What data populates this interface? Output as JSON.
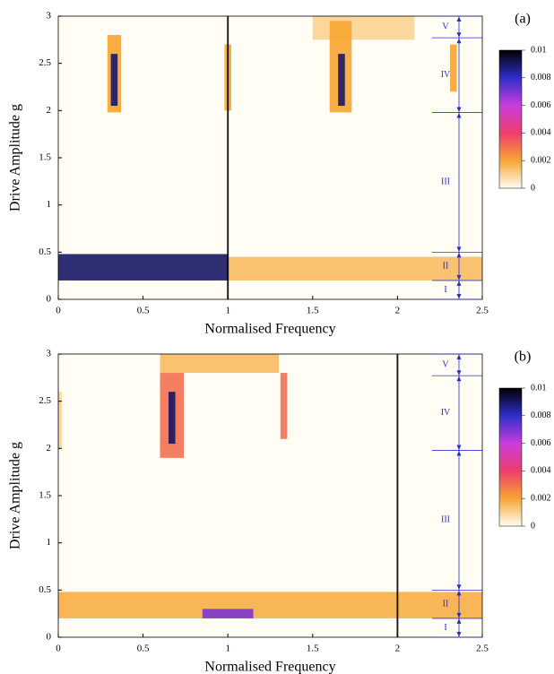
{
  "chart_data": [
    {
      "type": "heatmap",
      "panel_label": "(a)",
      "xlabel": "Normalised Frequency",
      "ylabel": "Drive Amplitude g",
      "xlim": [
        0,
        2.5
      ],
      "xticks": [
        0,
        0.5,
        1,
        1.5,
        2,
        2.5
      ],
      "ylim": [
        0,
        3
      ],
      "yticks": [
        0,
        0.5,
        1,
        1.5,
        2,
        2.5,
        3
      ],
      "clim": [
        0,
        0.01
      ],
      "cticks": [
        0,
        0.002,
        0.004,
        0.006,
        0.008,
        0.01
      ],
      "colormap": [
        "#fffdf4",
        "#f7a531",
        "#ee3d6e",
        "#c93ddc",
        "#2e2ec8",
        "#000000"
      ],
      "regions": [
        {
          "label": "I",
          "range": [
            0,
            0.2
          ]
        },
        {
          "label": "II",
          "range": [
            0.2,
            0.5
          ]
        },
        {
          "label": "III",
          "range": [
            0.5,
            1.98
          ]
        },
        {
          "label": "IV",
          "range": [
            1.98,
            2.77
          ]
        },
        {
          "label": "V",
          "range": [
            2.77,
            3
          ]
        }
      ],
      "features": [
        {
          "x": [
            1,
            2.5
          ],
          "y": [
            0.2,
            0.45
          ],
          "value": 0.0015
        },
        {
          "x": [
            0,
            1
          ],
          "y": [
            0.2,
            0.48
          ],
          "value": 0.009
        },
        {
          "x": [
            1.5,
            2.1
          ],
          "y": [
            2.75,
            3
          ],
          "value": 0.001
        },
        {
          "x": [
            0.29,
            0.37
          ],
          "y": [
            1.98,
            2.8
          ],
          "value": 0.002
        },
        {
          "x": [
            0.31,
            0.35
          ],
          "y": [
            2.05,
            2.6
          ],
          "value": 0.009
        },
        {
          "x": [
            1.6,
            1.73
          ],
          "y": [
            1.98,
            2.95
          ],
          "value": 0.002
        },
        {
          "x": [
            1.65,
            1.69
          ],
          "y": [
            2.05,
            2.6
          ],
          "value": 0.009
        },
        {
          "x": [
            0.98,
            1.02
          ],
          "y": [
            2,
            2.7
          ],
          "value": 0.002
        },
        {
          "x": [
            2.31,
            2.35
          ],
          "y": [
            2.2,
            2.7
          ],
          "value": 0.002
        },
        {
          "x": [
            0.995,
            1.005
          ],
          "y": [
            0,
            3
          ],
          "value": 0.01
        }
      ]
    },
    {
      "type": "heatmap",
      "panel_label": "(b)",
      "xlabel": "Normalised Frequency",
      "ylabel": "Drive Amplitude g",
      "xlim": [
        0,
        2.5
      ],
      "xticks": [
        0,
        0.5,
        1,
        1.5,
        2,
        2.5
      ],
      "ylim": [
        0,
        3
      ],
      "yticks": [
        0,
        0.5,
        1,
        1.5,
        2,
        2.5,
        3
      ],
      "clim": [
        0,
        0.01
      ],
      "cticks": [
        0,
        0.002,
        0.004,
        0.006,
        0.008,
        0.01
      ],
      "colormap": [
        "#fffdf4",
        "#f7a531",
        "#ee3d6e",
        "#c93ddc",
        "#2e2ec8",
        "#000000"
      ],
      "regions": [
        {
          "label": "I",
          "range": [
            0,
            0.2
          ]
        },
        {
          "label": "II",
          "range": [
            0.2,
            0.5
          ]
        },
        {
          "label": "III",
          "range": [
            0.5,
            1.98
          ]
        },
        {
          "label": "IV",
          "range": [
            1.98,
            2.77
          ]
        },
        {
          "label": "V",
          "range": [
            2.77,
            3
          ]
        }
      ],
      "features": [
        {
          "x": [
            0,
            2.5
          ],
          "y": [
            0.2,
            0.48
          ],
          "value": 0.0018
        },
        {
          "x": [
            0.85,
            1.15
          ],
          "y": [
            0.2,
            0.3
          ],
          "value": 0.007
        },
        {
          "x": [
            0.6,
            1.3
          ],
          "y": [
            2.8,
            3
          ],
          "value": 0.0015
        },
        {
          "x": [
            0.6,
            0.74
          ],
          "y": [
            1.9,
            2.8
          ],
          "value": 0.003
        },
        {
          "x": [
            0.65,
            0.69
          ],
          "y": [
            2.05,
            2.6
          ],
          "value": 0.009
        },
        {
          "x": [
            1.31,
            1.35
          ],
          "y": [
            2.1,
            2.8
          ],
          "value": 0.003
        },
        {
          "x": [
            0,
            0.02
          ],
          "y": [
            2,
            2.6
          ],
          "value": 0.001
        },
        {
          "x": [
            1.995,
            2.005
          ],
          "y": [
            0,
            3
          ],
          "value": 0.01
        }
      ]
    }
  ]
}
